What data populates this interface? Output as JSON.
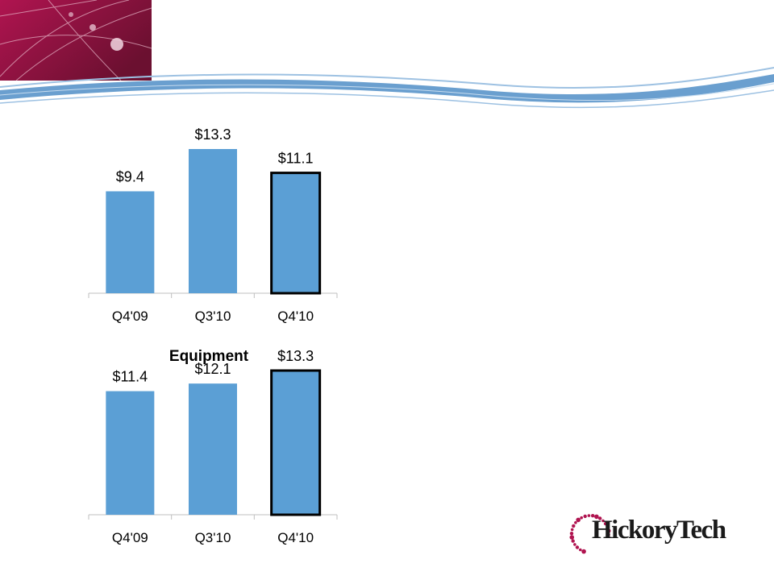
{
  "colors": {
    "bar": "#5b9fd5",
    "highlight_border": "#000000",
    "banner_dark": "#6b1030",
    "banner_light": "#b01450",
    "wave": "#6a9fcf",
    "logo_dots": "#b01450"
  },
  "logo": {
    "text": "HickoryTech"
  },
  "chart_data": [
    {
      "type": "bar",
      "title": "",
      "categories": [
        "Q4'09",
        "Q3'10",
        "Q4'10"
      ],
      "values": [
        9.4,
        13.3,
        11.1
      ],
      "value_labels": [
        "$9.4",
        "$13.3",
        "$11.1"
      ],
      "highlighted_category": "Q4'10",
      "ylim": [
        0,
        13.3
      ],
      "grid": false,
      "legend": "none"
    },
    {
      "type": "bar",
      "title": "Equipment",
      "categories": [
        "Q4'09",
        "Q3'10",
        "Q4'10"
      ],
      "values": [
        11.4,
        12.1,
        13.3
      ],
      "value_labels": [
        "$11.4",
        "$12.1",
        "$13.3"
      ],
      "highlighted_category": "Q4'10",
      "ylim": [
        0,
        13.3
      ],
      "grid": false,
      "legend": "none"
    }
  ]
}
